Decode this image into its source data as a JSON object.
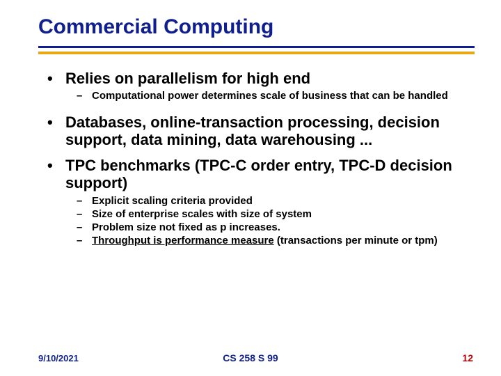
{
  "title": "Commercial Computing",
  "colors": {
    "title": "#0f1f8f",
    "rule_navy": "#0f1f8f",
    "rule_gold": "#e6a817",
    "page_number": "#c00000",
    "text": "#000000",
    "background": "#ffffff"
  },
  "bullets": {
    "b1a": "Relies on parallelism for high end",
    "b1a_sub1": "Computational power determines scale of business that can be handled",
    "b1b": "Databases, online-transaction processing, decision support, data mining, data warehousing ...",
    "b1c": "TPC benchmarks (TPC-C order entry, TPC-D decision support)",
    "b1c_sub1": "Explicit scaling criteria provided",
    "b1c_sub2": "Size of enterprise scales with size of system",
    "b1c_sub3": "Problem size not fixed as p increases.",
    "b1c_sub4_u": "Throughput is performance measure",
    "b1c_sub4_rest": " (transactions per minute or tpm)"
  },
  "footer": {
    "date": "9/10/2021",
    "center": "CS 258 S 99",
    "page": "12"
  }
}
